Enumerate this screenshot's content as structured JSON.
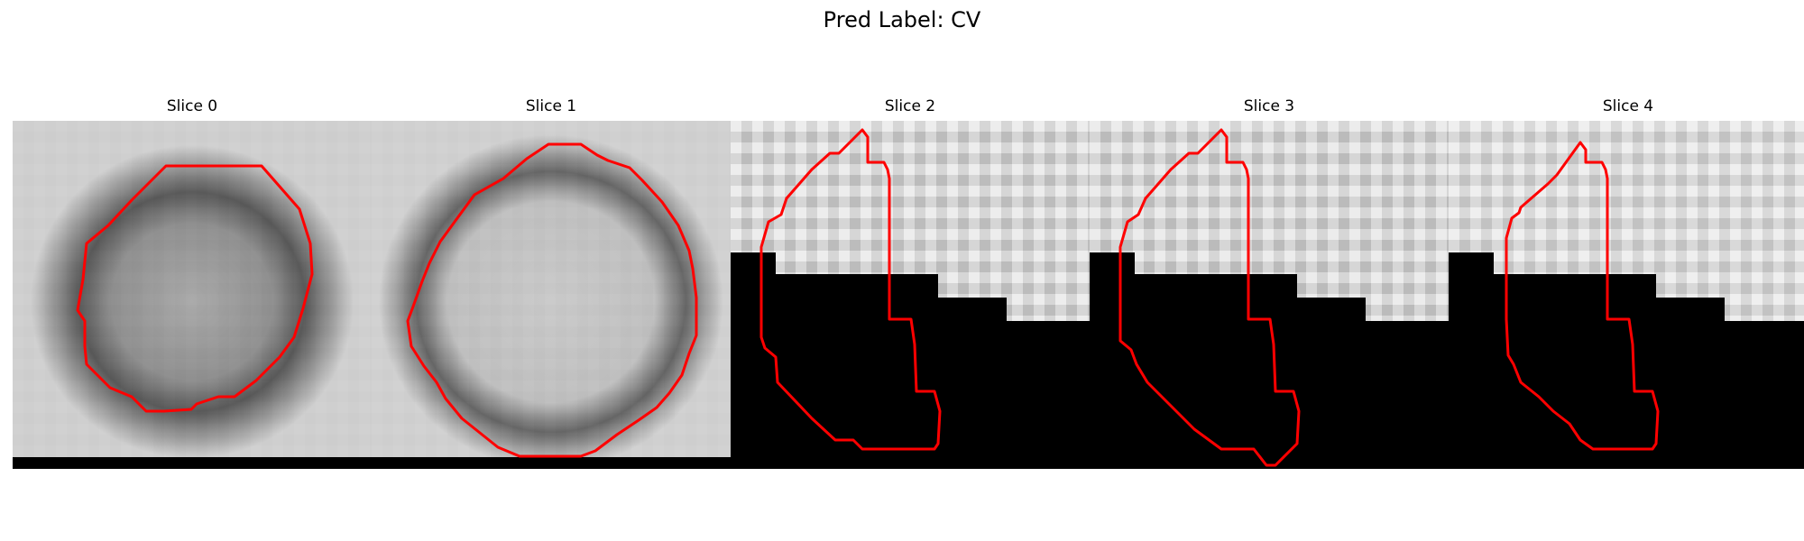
{
  "figure": {
    "title": "Pred Label: CV"
  },
  "panels": [
    {
      "title": "Slice 0",
      "contour_color": "#ff0000"
    },
    {
      "title": "Slice 1",
      "contour_color": "#ff0000"
    },
    {
      "title": "Slice 2",
      "contour_color": "#ff0000"
    },
    {
      "title": "Slice 3",
      "contour_color": "#ff0000"
    },
    {
      "title": "Slice 4",
      "contour_color": "#ff0000"
    }
  ]
}
